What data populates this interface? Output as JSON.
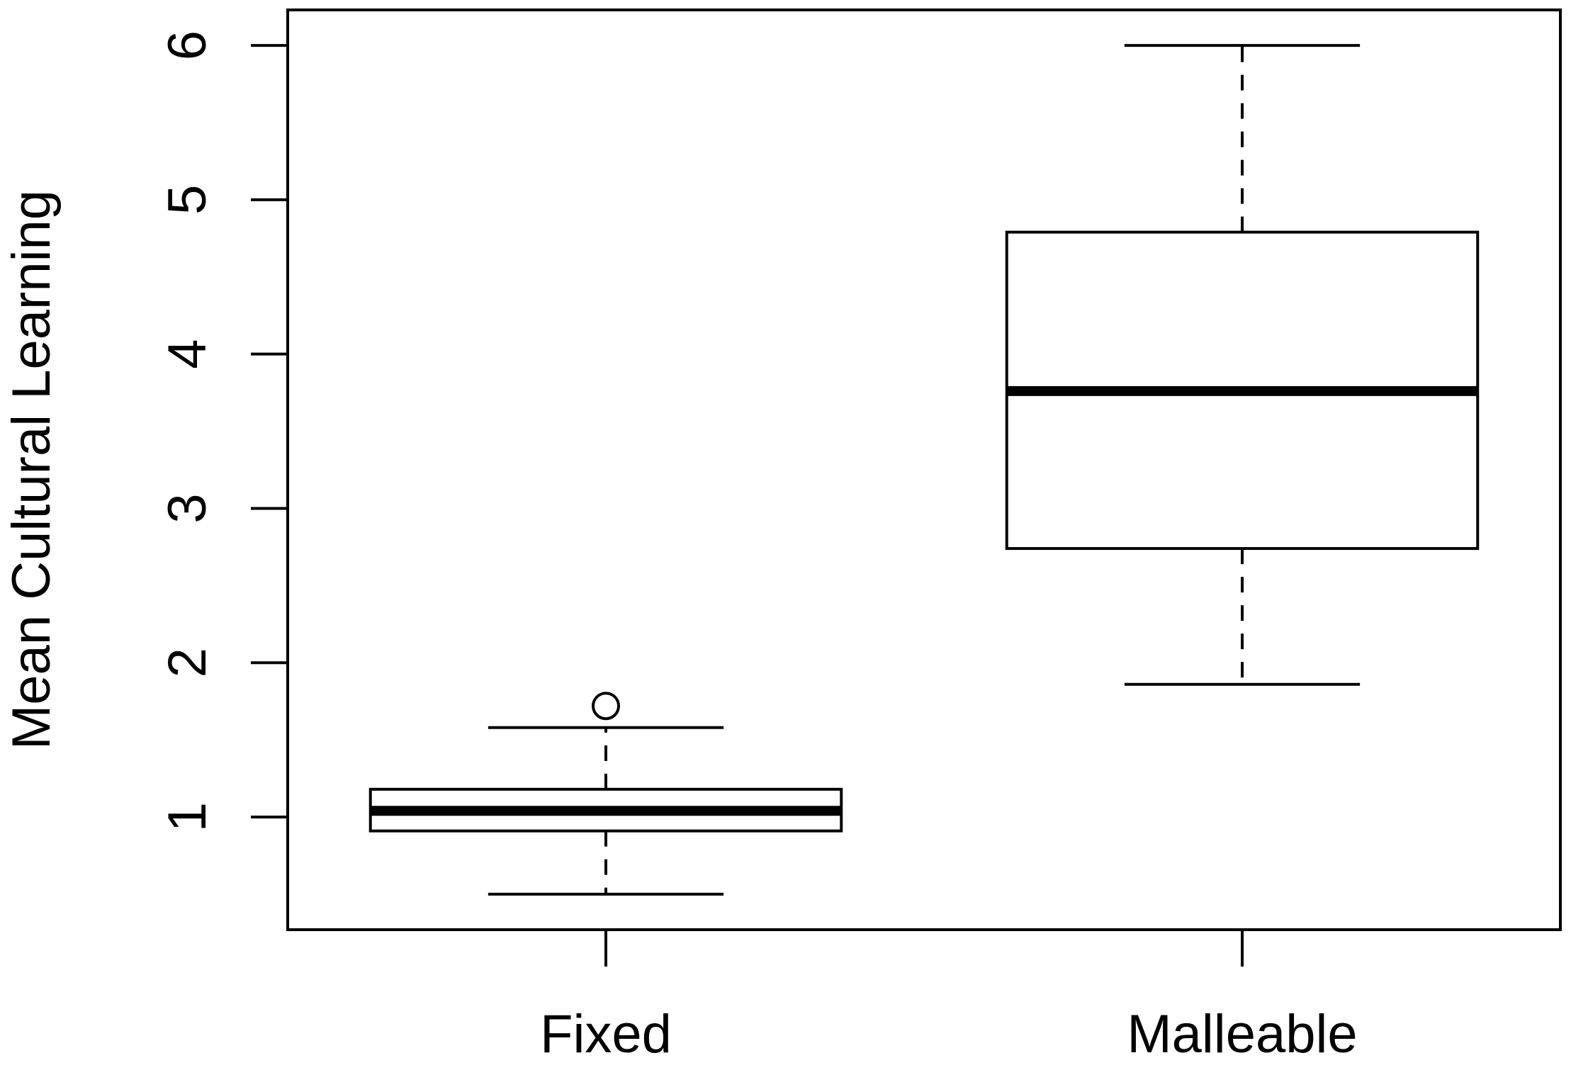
{
  "chart_data": {
    "type": "box",
    "y_label": "Mean Cultural Learning",
    "categories": [
      "Fixed",
      "Malleable"
    ],
    "boxes": [
      {
        "min": 0.5,
        "q1": 0.91,
        "median": 1.04,
        "q3": 1.18,
        "max": 1.58,
        "outliers": [
          1.72
        ]
      },
      {
        "min": 1.86,
        "q1": 2.74,
        "median": 3.76,
        "q3": 4.79,
        "max": 6,
        "outliers": []
      }
    ],
    "color": "#000000",
    "ylim": [
      0.27,
      6.23
    ],
    "yticks": [
      1,
      2,
      3,
      4,
      5,
      6
    ]
  }
}
